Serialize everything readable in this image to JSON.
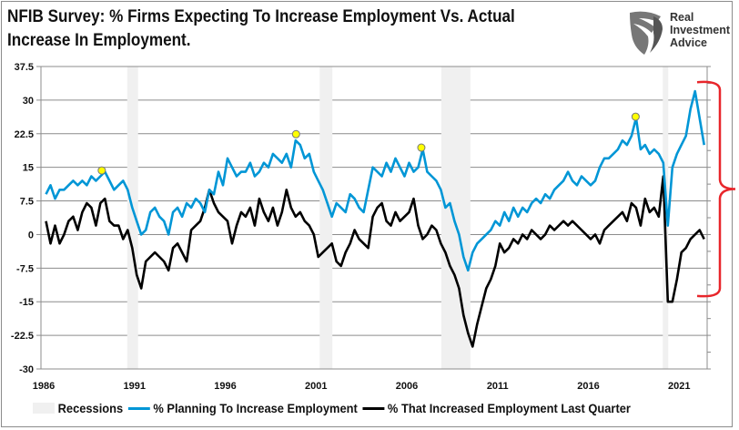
{
  "title_lines": [
    "NFIB Survey:  % Firms Expecting To Increase Employment Vs. Actual",
    "Increase In Employment."
  ],
  "logo": {
    "lines": [
      "Real",
      "Investment",
      "Advice"
    ]
  },
  "chart_data": {
    "type": "line",
    "title": "NFIB Survey:  % Firms Expecting To Increase Employment Vs. Actual Increase In Employment.",
    "xlabel": "",
    "ylabel": "",
    "xlim": [
      1986,
      2022.6
    ],
    "ylim": [
      -30,
      37.5
    ],
    "x_ticks": [
      "1986",
      "1991",
      "1996",
      "2001",
      "2006",
      "2011",
      "2016",
      "2021"
    ],
    "y_ticks": [
      "37.5",
      "30",
      "22.5",
      "15",
      "7.5",
      "0",
      "-7.5",
      "-15",
      "-22.5",
      "-30"
    ],
    "grid": "horizontal",
    "legend_placement": "bottom",
    "legend": [
      "Recessions",
      "% Planning To Increase Employment",
      "% That Increased Employment Last Quarter"
    ],
    "colors": {
      "planning": "#0096d6",
      "actual": "#000000",
      "recession": "#f0f0f0",
      "highlight": "#ffff00",
      "bracket": "#e8262b"
    },
    "recessions": [
      [
        1990.6,
        1991.2
      ],
      [
        2001.2,
        2001.9
      ],
      [
        2007.9,
        2009.5
      ],
      [
        2020.1,
        2020.4
      ]
    ],
    "highlight_points": [
      {
        "x": 1989.2,
        "y": 14.3
      },
      {
        "x": 1999.9,
        "y": 22.4
      },
      {
        "x": 2006.8,
        "y": 19.4
      },
      {
        "x": 2018.6,
        "y": 26.3
      }
    ],
    "bracket_range": [
      -13.7,
      34
    ],
    "series_quarterly": [
      {
        "year": 1986,
        "planning": [
          9,
          11,
          8,
          10
        ],
        "actual": [
          3,
          -2,
          2,
          -2
        ]
      },
      {
        "year": 1987,
        "planning": [
          10,
          11,
          12,
          11
        ],
        "actual": [
          0,
          3,
          4,
          1
        ]
      },
      {
        "year": 1988,
        "planning": [
          12,
          11,
          13,
          12
        ],
        "actual": [
          5,
          7,
          6,
          2
        ]
      },
      {
        "year": 1989,
        "planning": [
          13,
          14,
          12,
          10
        ],
        "actual": [
          7,
          8,
          3,
          2
        ]
      },
      {
        "year": 1990,
        "planning": [
          11,
          12,
          10,
          6
        ],
        "actual": [
          2,
          -1,
          1,
          -3
        ]
      },
      {
        "year": 1991,
        "planning": [
          3,
          0,
          1,
          5
        ],
        "actual": [
          -9,
          -12,
          -6,
          -5
        ]
      },
      {
        "year": 1992,
        "planning": [
          6,
          4,
          3,
          0
        ],
        "actual": [
          -4,
          -5,
          -6,
          -8
        ]
      },
      {
        "year": 1993,
        "planning": [
          5,
          6,
          4,
          7
        ],
        "actual": [
          -3,
          -2,
          -4,
          -6
        ]
      },
      {
        "year": 1994,
        "planning": [
          6,
          8,
          7,
          5
        ],
        "actual": [
          1,
          2,
          3,
          6
        ]
      },
      {
        "year": 1995,
        "planning": [
          10,
          9,
          14,
          11
        ],
        "actual": [
          10,
          7,
          5,
          4
        ]
      },
      {
        "year": 1996,
        "planning": [
          17,
          15,
          13,
          14
        ],
        "actual": [
          3,
          -2,
          2,
          5
        ]
      },
      {
        "year": 1997,
        "planning": [
          14,
          16,
          13,
          14
        ],
        "actual": [
          4,
          6,
          2,
          8
        ]
      },
      {
        "year": 1998,
        "planning": [
          16,
          15,
          18,
          17
        ],
        "actual": [
          5,
          3,
          6,
          2
        ]
      },
      {
        "year": 1999,
        "planning": [
          16,
          18,
          15,
          21
        ],
        "actual": [
          5,
          10,
          6,
          4
        ]
      },
      {
        "year": 2000,
        "planning": [
          20,
          17,
          18,
          14
        ],
        "actual": [
          5,
          3,
          2,
          0
        ]
      },
      {
        "year": 2001,
        "planning": [
          12,
          10,
          7,
          4
        ],
        "actual": [
          -5,
          -4,
          -3,
          -2
        ]
      },
      {
        "year": 2002,
        "planning": [
          7,
          6,
          5,
          9
        ],
        "actual": [
          -6,
          -7,
          -4,
          -2
        ]
      },
      {
        "year": 2003,
        "planning": [
          8,
          6,
          5,
          10
        ],
        "actual": [
          1,
          -1,
          -2,
          -3
        ]
      },
      {
        "year": 2004,
        "planning": [
          15,
          14,
          13,
          16
        ],
        "actual": [
          4,
          6,
          7,
          3
        ]
      },
      {
        "year": 2005,
        "planning": [
          14,
          17,
          15,
          13
        ],
        "actual": [
          2,
          5,
          3,
          4
        ]
      },
      {
        "year": 2006,
        "planning": [
          16,
          14,
          15,
          19
        ],
        "actual": [
          5,
          8,
          2,
          -1
        ]
      },
      {
        "year": 2007,
        "planning": [
          14,
          13,
          12,
          10
        ],
        "actual": [
          0,
          2,
          1,
          -2
        ]
      },
      {
        "year": 2008,
        "planning": [
          6,
          7,
          3,
          0
        ],
        "actual": [
          -4,
          -7,
          -9,
          -12
        ]
      },
      {
        "year": 2009,
        "planning": [
          -5,
          -8,
          -4,
          -2
        ],
        "actual": [
          -18,
          -22,
          -25,
          -20
        ]
      },
      {
        "year": 2010,
        "planning": [
          -1,
          0,
          1,
          3
        ],
        "actual": [
          -16,
          -12,
          -10,
          -7
        ]
      },
      {
        "year": 2011,
        "planning": [
          2,
          5,
          3,
          6
        ],
        "actual": [
          -2,
          -4,
          -3,
          -1
        ]
      },
      {
        "year": 2012,
        "planning": [
          4,
          6,
          5,
          7
        ],
        "actual": [
          -2,
          0,
          -1,
          1
        ]
      },
      {
        "year": 2013,
        "planning": [
          8,
          7,
          9,
          8
        ],
        "actual": [
          0,
          -1,
          0,
          2
        ]
      },
      {
        "year": 2014,
        "planning": [
          10,
          11,
          12,
          14
        ],
        "actual": [
          1,
          2,
          3,
          2
        ]
      },
      {
        "year": 2015,
        "planning": [
          12,
          11,
          13,
          12
        ],
        "actual": [
          3,
          2,
          1,
          0
        ]
      },
      {
        "year": 2016,
        "planning": [
          11,
          12,
          15,
          17
        ],
        "actual": [
          -1,
          0,
          -2,
          1
        ]
      },
      {
        "year": 2017,
        "planning": [
          17,
          18,
          19,
          21
        ],
        "actual": [
          2,
          3,
          4,
          5
        ]
      },
      {
        "year": 2018,
        "planning": [
          20,
          22,
          26,
          19
        ],
        "actual": [
          3,
          7,
          6,
          2
        ]
      },
      {
        "year": 2019,
        "planning": [
          20,
          18,
          19,
          18
        ],
        "actual": [
          8,
          5,
          6,
          4
        ]
      },
      {
        "year": 2020,
        "planning": [
          16,
          2,
          15,
          18
        ],
        "actual": [
          13,
          -15,
          -15,
          -10
        ]
      },
      {
        "year": 2021,
        "planning": [
          20,
          22,
          28,
          32
        ],
        "actual": [
          -4,
          -3,
          -1,
          0
        ]
      },
      {
        "year": 2022,
        "planning": [
          26,
          20
        ],
        "actual": [
          1,
          -1
        ]
      }
    ]
  }
}
